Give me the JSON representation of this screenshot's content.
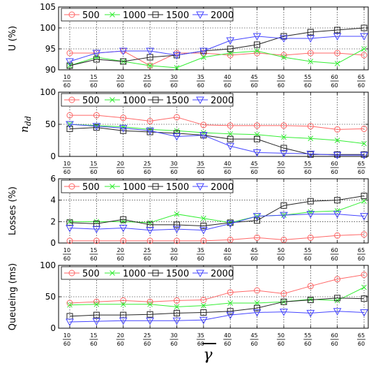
{
  "chart_data": [
    {
      "type": "line",
      "ylabel": "U (%)",
      "ylim": [
        90,
        105
      ],
      "yticks": [
        "90",
        "95",
        "100",
        "105"
      ],
      "grid": true,
      "legend_position": "top-left",
      "x_numerators": [
        "10",
        "15",
        "20",
        "25",
        "30",
        "35",
        "40",
        "45",
        "50",
        "55",
        "60",
        "65"
      ],
      "x_denominator": "60",
      "series": [
        {
          "name": "500",
          "values": [
            94.0,
            94.0,
            94.5,
            91.0,
            94.0,
            94.0,
            93.5,
            94.0,
            93.5,
            94.0,
            94.0,
            93.5
          ]
        },
        {
          "name": "1000",
          "values": [
            91.0,
            93.0,
            92.0,
            91.0,
            90.5,
            93.0,
            94.0,
            94.5,
            93.0,
            92.0,
            91.5,
            95.0
          ]
        },
        {
          "name": "1500",
          "values": [
            91.0,
            92.5,
            92.0,
            93.0,
            93.5,
            94.5,
            95.0,
            96.0,
            98.0,
            99.0,
            99.5,
            100.0
          ]
        },
        {
          "name": "2000",
          "values": [
            92.0,
            94.0,
            94.5,
            94.5,
            93.5,
            94.5,
            97.0,
            98.0,
            97.5,
            97.5,
            98.0,
            98.0
          ]
        }
      ]
    },
    {
      "type": "line",
      "ylabel": "n_dd",
      "ylim": [
        0,
        100
      ],
      "yticks": [
        "0",
        "50",
        "100"
      ],
      "grid": true,
      "legend_position": "top-left",
      "x_numerators": [
        "10",
        "15",
        "20",
        "25",
        "30",
        "35",
        "40",
        "45",
        "50",
        "55",
        "60",
        "65"
      ],
      "x_denominator": "60",
      "series": [
        {
          "name": "500",
          "values": [
            64,
            64,
            60,
            55,
            61,
            49,
            48,
            48,
            48,
            47,
            42,
            43
          ]
        },
        {
          "name": "1000",
          "values": [
            50,
            48,
            46,
            42,
            40,
            37,
            35,
            34,
            30,
            28,
            25,
            20
          ]
        },
        {
          "name": "1500",
          "values": [
            43,
            45,
            40,
            38,
            36,
            33,
            27,
            27,
            13,
            3,
            3,
            3
          ]
        },
        {
          "name": "2000",
          "values": [
            50,
            47,
            44,
            40,
            31,
            33,
            16,
            6,
            5,
            4,
            2,
            2
          ]
        }
      ]
    },
    {
      "type": "line",
      "ylabel": "Losses (%)",
      "ylim": [
        0,
        6
      ],
      "yticks": [
        "0",
        "2",
        "4",
        "6"
      ],
      "grid": true,
      "legend_position": "top-left",
      "x_numerators": [
        "10",
        "15",
        "20",
        "25",
        "30",
        "35",
        "40",
        "45",
        "50",
        "55",
        "60",
        "65"
      ],
      "x_denominator": "60",
      "series": [
        {
          "name": "500",
          "values": [
            0.2,
            0.2,
            0.2,
            0.2,
            0.2,
            0.2,
            0.3,
            0.5,
            0.3,
            0.5,
            0.7,
            0.8
          ]
        },
        {
          "name": "1000",
          "values": [
            2.0,
            2.0,
            2.0,
            1.9,
            2.7,
            2.3,
            1.9,
            2.5,
            2.6,
            2.9,
            3.0,
            3.9
          ]
        },
        {
          "name": "1500",
          "values": [
            1.9,
            1.8,
            2.2,
            1.7,
            1.7,
            1.6,
            1.9,
            2.1,
            3.5,
            3.9,
            4.0,
            4.4
          ]
        },
        {
          "name": "2000",
          "values": [
            1.4,
            1.3,
            1.4,
            1.2,
            1.3,
            1.2,
            1.8,
            2.5,
            2.6,
            2.7,
            2.7,
            2.5
          ]
        }
      ]
    },
    {
      "type": "line",
      "ylabel": "Queueing (ms)",
      "ylim": [
        0,
        100
      ],
      "yticks": [
        "0",
        "50",
        "100"
      ],
      "grid": true,
      "legend_position": "top-left",
      "xlabel": "γ",
      "x_numerators": [
        "10",
        "15",
        "20",
        "25",
        "30",
        "35",
        "40",
        "45",
        "50",
        "55",
        "60",
        "65"
      ],
      "x_denominator": "60",
      "series": [
        {
          "name": "500",
          "values": [
            40,
            42,
            44,
            42,
            44,
            45,
            57,
            60,
            55,
            67,
            78,
            85
          ]
        },
        {
          "name": "1000",
          "values": [
            37,
            38,
            38,
            38,
            34,
            36,
            40,
            40,
            42,
            46,
            44,
            65
          ]
        },
        {
          "name": "1500",
          "values": [
            19,
            21,
            21,
            22,
            24,
            25,
            27,
            32,
            42,
            45,
            48,
            47
          ]
        },
        {
          "name": "2000",
          "values": [
            10,
            11,
            12,
            12,
            12,
            13,
            21,
            25,
            26,
            24,
            27,
            25
          ]
        }
      ]
    }
  ],
  "colors": {
    "500": "#ff6666",
    "1000": "#33ee33",
    "1500": "#222222",
    "2000": "#4444ff"
  },
  "markers": {
    "500": "circle",
    "1000": "x",
    "1500": "square",
    "2000": "triangle-down"
  }
}
